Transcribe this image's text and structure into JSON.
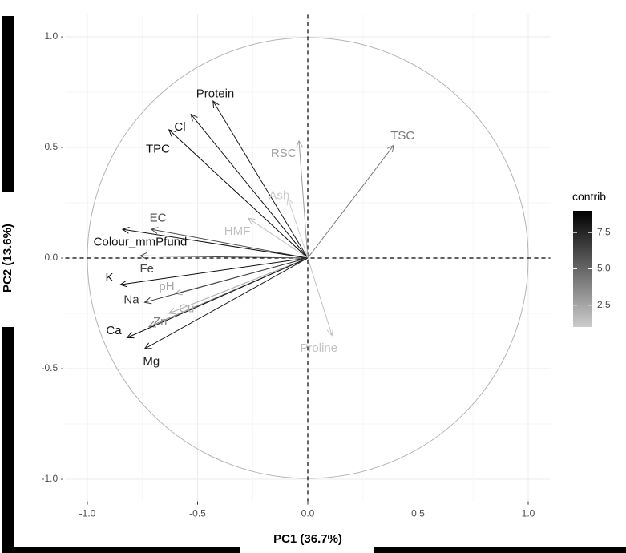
{
  "chart_data": {
    "type": "scatter",
    "subtype": "pca-variable-correlation-circle",
    "xlabel": "PC1 (36.7%)",
    "ylabel": "PC2 (13.6%)",
    "xlim": [
      -1.1,
      1.1
    ],
    "ylim": [
      -1.1,
      1.1
    ],
    "xticks": [
      -1.0,
      -0.5,
      0.0,
      0.5,
      1.0
    ],
    "yticks": [
      -1.0,
      -0.5,
      0.0,
      0.5,
      1.0
    ],
    "xtick_labels": [
      "-1.0",
      "-0.5",
      "0.0",
      "0.5",
      "1.0"
    ],
    "ytick_labels": [
      "-1.0 -",
      "-0.5 -",
      "0.0 -",
      "0.5 -",
      "1.0 -"
    ],
    "grid": true,
    "legend": {
      "title": "contrib",
      "position": "right",
      "ticks": [
        2.5,
        5.0,
        7.5
      ],
      "tick_labels": [
        "2.5",
        "5.0",
        "7.5"
      ],
      "range": [
        1.0,
        9.0
      ],
      "low_color": "#cccccc",
      "high_color": "#000000"
    },
    "variables": [
      {
        "name": "Protein",
        "x": -0.43,
        "y": 0.71,
        "contrib": 8.0,
        "label_x": -0.42,
        "label_y": 0.74
      },
      {
        "name": "Cl",
        "x": -0.53,
        "y": 0.65,
        "contrib": 8.3,
        "label_x": -0.58,
        "label_y": 0.59
      },
      {
        "name": "TPC",
        "x": -0.63,
        "y": 0.58,
        "contrib": 8.6,
        "label_x": -0.68,
        "label_y": 0.49
      },
      {
        "name": "TSC",
        "x": 0.39,
        "y": 0.51,
        "contrib": 4.2,
        "label_x": 0.43,
        "label_y": 0.55
      },
      {
        "name": "RSC",
        "x": -0.04,
        "y": 0.53,
        "contrib": 2.8,
        "label_x": -0.11,
        "label_y": 0.47
      },
      {
        "name": "Ash",
        "x": -0.09,
        "y": 0.27,
        "contrib": 1.0,
        "label_x": -0.13,
        "label_y": 0.28
      },
      {
        "name": "HMF",
        "x": -0.27,
        "y": 0.18,
        "contrib": 1.5,
        "label_x": -0.32,
        "label_y": 0.12
      },
      {
        "name": "EC",
        "x": -0.71,
        "y": 0.13,
        "contrib": 6.0,
        "label_x": -0.68,
        "label_y": 0.18
      },
      {
        "name": "Colour_mmPfund",
        "x": -0.84,
        "y": 0.13,
        "contrib": 8.3,
        "label_x": -0.76,
        "label_y": 0.07
      },
      {
        "name": "Fe",
        "x": -0.76,
        "y": 0.01,
        "contrib": 6.2,
        "label_x": -0.73,
        "label_y": -0.05
      },
      {
        "name": "K",
        "x": -0.85,
        "y": -0.12,
        "contrib": 8.5,
        "label_x": -0.9,
        "label_y": -0.09
      },
      {
        "name": "pH",
        "x": -0.6,
        "y": -0.16,
        "contrib": 2.5,
        "label_x": -0.64,
        "label_y": -0.13
      },
      {
        "name": "Na",
        "x": -0.74,
        "y": -0.2,
        "contrib": 6.8,
        "label_x": -0.8,
        "label_y": -0.19
      },
      {
        "name": "Cu",
        "x": -0.63,
        "y": -0.25,
        "contrib": 2.3,
        "label_x": -0.55,
        "label_y": -0.23
      },
      {
        "name": "Zn",
        "x": -0.72,
        "y": -0.31,
        "contrib": 4.0,
        "label_x": -0.67,
        "label_y": -0.29
      },
      {
        "name": "Ca",
        "x": -0.82,
        "y": -0.36,
        "contrib": 8.4,
        "label_x": -0.88,
        "label_y": -0.33
      },
      {
        "name": "Mg",
        "x": -0.74,
        "y": -0.41,
        "contrib": 7.9,
        "label_x": -0.71,
        "label_y": -0.47
      },
      {
        "name": "Proline",
        "x": 0.11,
        "y": -0.35,
        "contrib": 1.4,
        "label_x": 0.05,
        "label_y": -0.41
      }
    ]
  }
}
